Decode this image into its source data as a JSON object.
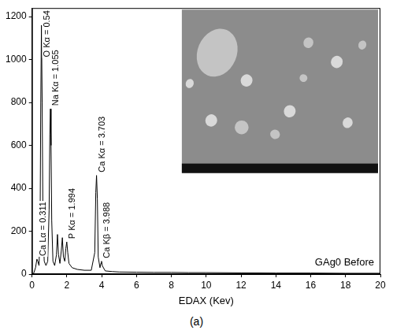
{
  "chart_data": {
    "type": "line",
    "x_label": "EDAX (Kev)",
    "caption": "(a)",
    "xlim": [
      0,
      20
    ],
    "xticks": [
      0,
      2,
      4,
      6,
      8,
      10,
      12,
      14,
      16,
      18,
      20
    ],
    "ylim": [
      0,
      1240
    ],
    "yticks": [
      0,
      200,
      400,
      600,
      800,
      1000,
      1200
    ],
    "grid": false,
    "legend": "lower right",
    "series": [
      {
        "name": "GAg0 Before",
        "color": "#000000",
        "x": [
          0.0,
          0.1,
          0.2,
          0.28,
          0.33,
          0.4,
          0.46,
          0.5,
          0.54,
          0.58,
          0.63,
          0.7,
          0.8,
          0.9,
          0.98,
          1.02,
          1.055,
          1.09,
          1.13,
          1.2,
          1.3,
          1.4,
          1.46,
          1.52,
          1.6,
          1.68,
          1.74,
          1.8,
          1.88,
          1.94,
          1.994,
          2.05,
          2.12,
          2.3,
          2.6,
          3.0,
          3.4,
          3.6,
          3.66,
          3.703,
          3.75,
          3.8,
          3.9,
          3.95,
          3.988,
          4.03,
          4.2,
          4.6,
          5.0,
          6.0,
          7.0,
          8.0,
          9.0,
          10.0,
          12.0,
          14.0,
          16.0,
          18.0,
          20.0
        ],
        "values": [
          0,
          5,
          30,
          70,
          60,
          40,
          200,
          800,
          1160,
          800,
          200,
          60,
          40,
          60,
          300,
          650,
          770,
          600,
          250,
          60,
          40,
          90,
          185,
          90,
          50,
          110,
          170,
          80,
          60,
          120,
          150,
          100,
          50,
          30,
          22,
          18,
          18,
          100,
          380,
          460,
          350,
          80,
          30,
          50,
          60,
          40,
          15,
          12,
          10,
          9,
          8,
          8,
          7,
          7,
          6,
          5,
          5,
          4,
          4
        ]
      }
    ],
    "annotations": [
      {
        "text": "Ca Lα = 0.311",
        "x": 0.311
      },
      {
        "text": "O Kα = 0.54",
        "x": 0.54
      },
      {
        "text": "Na Kα = 1.055",
        "x": 1.055
      },
      {
        "text": "P Kα = 1.994",
        "x": 1.994
      },
      {
        "text": "Ca Kα = 3.703",
        "x": 3.703
      },
      {
        "text": "Ca Kβ = 3.988",
        "x": 3.988
      }
    ]
  }
}
